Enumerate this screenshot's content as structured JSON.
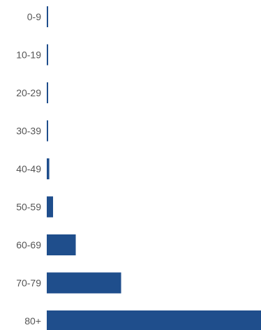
{
  "chart_data": {
    "type": "bar",
    "orientation": "horizontal",
    "categories": [
      "0-9",
      "10-19",
      "20-29",
      "30-39",
      "40-49",
      "50-59",
      "60-69",
      "70-79",
      "80+"
    ],
    "values": [
      0.1,
      0.2,
      0.3,
      0.4,
      1.0,
      2.5,
      11.5,
      29.5,
      85.0
    ],
    "xlim": [
      0,
      85
    ],
    "grid": false,
    "legend": "none",
    "bar_color": "#1f4e8c",
    "label_color": "#555555"
  }
}
